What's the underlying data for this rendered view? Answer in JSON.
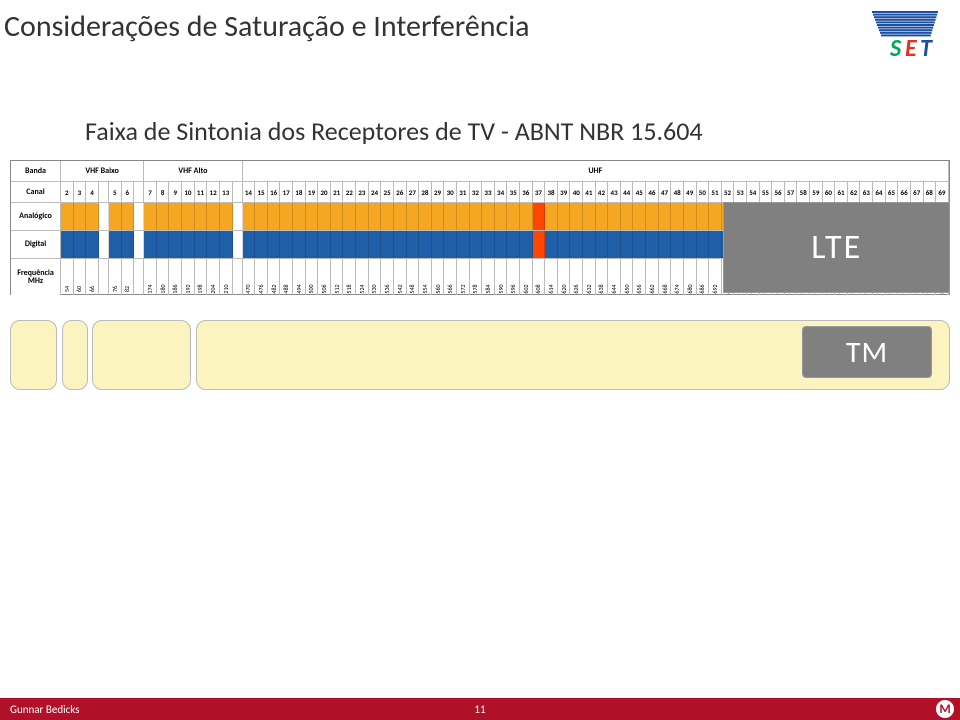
{
  "title": "Considerações de Saturação e Interferência",
  "subtitle": "Faixa de Sintonia dos Receptores de TV - ABNT NBR 15.604",
  "row_headers": {
    "banda": "Banda",
    "canal": "Canal",
    "analog": "Analógico",
    "digital": "Digital",
    "freq": "Frequência\nMHz"
  },
  "bands": [
    {
      "label": "VHF Baixo",
      "channels": [
        2,
        3,
        4,
        5,
        6
      ]
    },
    {
      "label": "VHF Alto",
      "channels": [
        7,
        8,
        9,
        10,
        11,
        12,
        13
      ]
    },
    {
      "label": "UHF",
      "channels": [
        14,
        15,
        16,
        17,
        18,
        19,
        20,
        21,
        22,
        23,
        24,
        25,
        26,
        27,
        28,
        29,
        30,
        31,
        32,
        33,
        34,
        35,
        36,
        37,
        38,
        39,
        40,
        41,
        42,
        43,
        44,
        45,
        46,
        47,
        48,
        49,
        50,
        51,
        52,
        53,
        54,
        55,
        56,
        57,
        58,
        59,
        60,
        61,
        62,
        63,
        64,
        65,
        66,
        67,
        68,
        69
      ]
    }
  ],
  "gaps_after_channel": [
    4,
    6,
    13
  ],
  "gap_width_units": 0.8,
  "colors": {
    "analog_default": "#f5a623",
    "digital_default": "#1f5fa8",
    "ch37": "#ff4500",
    "lte_bg": "#808080",
    "lte_text": "#ffffff",
    "yellow_bar": "#fbf3c0",
    "footer": "#b01028"
  },
  "special_channel": 37,
  "lte_start_channel": 52,
  "lte_label": "LTE",
  "tm_label": "TM",
  "freq_map": {
    "2": 54,
    "3": 60,
    "4": 66,
    "5": 76,
    "6": 82,
    "7": 174,
    "8": 180,
    "9": 186,
    "10": 192,
    "11": 198,
    "12": 204,
    "13": 210,
    "14": 470,
    "15": 476,
    "16": 482,
    "17": 488,
    "18": 494,
    "19": 500,
    "20": 506,
    "21": 512,
    "22": 518,
    "23": 524,
    "24": 530,
    "25": 536,
    "26": 542,
    "27": 548,
    "28": 554,
    "29": 560,
    "30": 566,
    "31": 572,
    "32": 578,
    "33": 584,
    "34": 590,
    "35": 596,
    "36": 602,
    "37": 608,
    "38": 614,
    "39": 620,
    "40": 626,
    "41": 632,
    "42": 638,
    "43": 644,
    "44": 650,
    "45": 656,
    "46": 662,
    "47": 668,
    "48": 674,
    "49": 680,
    "50": 686,
    "51": 692,
    "52": 698,
    "53": 704,
    "54": 710,
    "55": 716,
    "56": 722,
    "57": 728,
    "58": 734,
    "59": 740,
    "60": 746,
    "61": 752,
    "62": 758,
    "63": 764,
    "64": 770,
    "65": 776,
    "66": 782,
    "67": 788,
    "68": 794,
    "69": 800
  },
  "yellow_bars": [
    {
      "left_pct": 0,
      "width_pct": 5.0
    },
    {
      "left_pct": 5.5,
      "width_pct": 2.8
    },
    {
      "left_pct": 8.7,
      "width_pct": 10.6
    },
    {
      "left_pct": 19.8,
      "width_pct": 80.2
    }
  ],
  "footer": {
    "author": "Gunnar Bedicks",
    "page": "11",
    "mark": "M"
  },
  "logo_colors": {
    "stripes": "#1a4fa0",
    "s": "#00a85a",
    "e": "#e53020",
    "t": "#1a4fa0"
  }
}
